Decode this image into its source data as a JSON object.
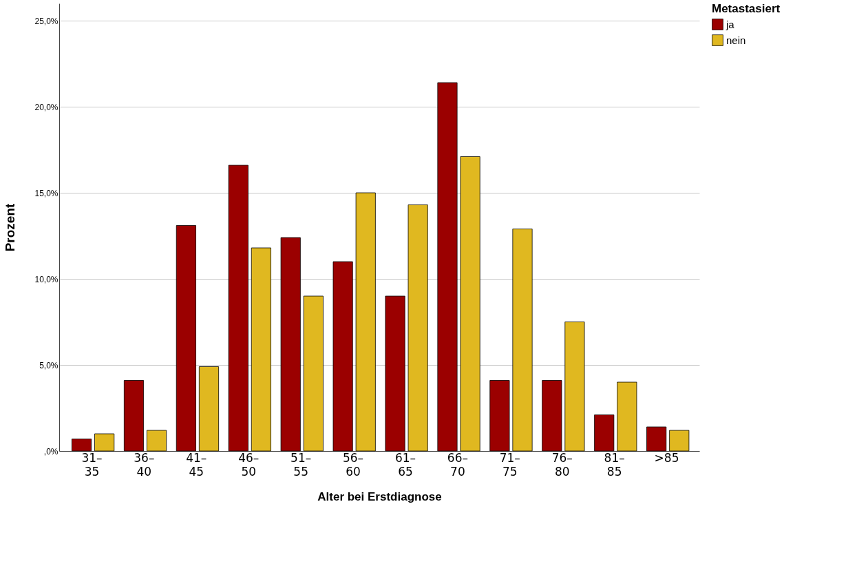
{
  "chart_data": {
    "type": "bar",
    "xlabel": "Alter bei Erstdiagnose",
    "ylabel": "Prozent",
    "legend_title": "Metastasiert",
    "categories": [
      "31–35",
      "36–40",
      "41–45",
      "46–50",
      "51–55",
      "56–60",
      "61–65",
      "66–70",
      "71–75",
      "76–80",
      "81–85",
      ">85"
    ],
    "series": [
      {
        "name": "ja",
        "color": "#9b0000",
        "values": [
          0.7,
          4.1,
          13.1,
          16.6,
          12.4,
          11.0,
          9.0,
          21.4,
          4.1,
          4.1,
          2.1,
          1.4
        ]
      },
      {
        "name": "nein",
        "color": "#e0b820",
        "values": [
          1.0,
          1.2,
          4.9,
          11.8,
          9.0,
          15.0,
          14.3,
          17.1,
          12.9,
          7.5,
          4.0,
          1.2
        ]
      }
    ],
    "ylim": [
      0,
      26
    ],
    "yticks": [
      {
        "value": 0,
        "label": ",0%"
      },
      {
        "value": 5,
        "label": "5,0%"
      },
      {
        "value": 10,
        "label": "10,0%"
      },
      {
        "value": 15,
        "label": "15,0%"
      },
      {
        "value": 20,
        "label": "20,0%"
      },
      {
        "value": 25,
        "label": "25,0%"
      }
    ],
    "grid": "y",
    "legend": "top right"
  }
}
